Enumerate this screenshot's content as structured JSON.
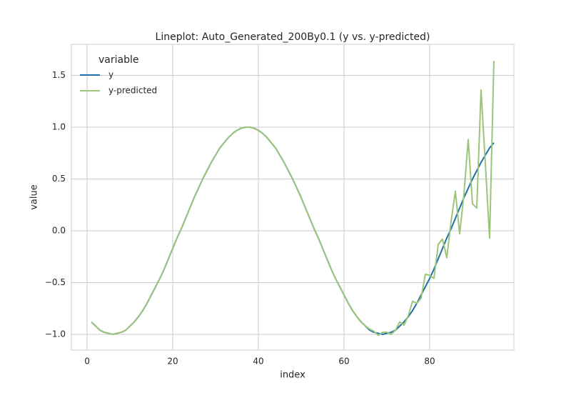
{
  "chart_data": {
    "type": "line",
    "title": "Lineplot: Auto_Generated_200By0.1 (y vs. y-predicted)",
    "x_label": "index",
    "y_label": "value",
    "legend_title": "variable",
    "legend": "upper left",
    "grid": true,
    "xlim": [
      -3.67,
      99.67
    ],
    "ylim": [
      -1.152,
      1.8
    ],
    "xticks": [
      0,
      20,
      40,
      60,
      80
    ],
    "yticks": [
      {
        "value": -1.0,
        "label": "−1.0"
      },
      {
        "value": -0.5,
        "label": "−0.5"
      },
      {
        "value": 0.0,
        "label": "0.0"
      },
      {
        "value": 0.5,
        "label": "0.5"
      },
      {
        "value": 1.0,
        "label": "1.0"
      },
      {
        "value": 1.5,
        "label": "1.5"
      }
    ],
    "x": [
      1,
      2,
      3,
      4,
      5,
      6,
      7,
      8,
      9,
      10,
      11,
      12,
      13,
      14,
      15,
      16,
      17,
      18,
      19,
      20,
      21,
      22,
      23,
      24,
      25,
      26,
      27,
      28,
      29,
      30,
      31,
      32,
      33,
      34,
      35,
      36,
      37,
      38,
      39,
      40,
      41,
      42,
      43,
      44,
      45,
      46,
      47,
      48,
      49,
      50,
      51,
      52,
      53,
      54,
      55,
      56,
      57,
      58,
      59,
      60,
      61,
      62,
      63,
      64,
      65,
      66,
      67,
      68,
      69,
      70,
      71,
      72,
      73,
      74,
      75,
      76,
      77,
      78,
      79,
      80,
      81,
      82,
      83,
      84,
      85,
      86,
      87,
      88,
      89,
      90,
      91,
      92,
      93,
      94,
      95
    ],
    "series": [
      {
        "name": "y",
        "color": "#1f6fab",
        "values": [
          -0.88,
          -0.92,
          -0.96,
          -0.98,
          -0.99,
          -1.0,
          -0.99,
          -0.98,
          -0.96,
          -0.92,
          -0.88,
          -0.83,
          -0.77,
          -0.7,
          -0.62,
          -0.54,
          -0.46,
          -0.37,
          -0.27,
          -0.17,
          -0.07,
          0.02,
          0.12,
          0.22,
          0.32,
          0.41,
          0.5,
          0.58,
          0.66,
          0.73,
          0.8,
          0.85,
          0.9,
          0.94,
          0.97,
          0.99,
          1.0,
          1.0,
          0.99,
          0.97,
          0.94,
          0.9,
          0.85,
          0.8,
          0.73,
          0.66,
          0.58,
          0.5,
          0.41,
          0.32,
          0.22,
          0.12,
          0.02,
          -0.07,
          -0.17,
          -0.27,
          -0.37,
          -0.46,
          -0.54,
          -0.62,
          -0.7,
          -0.77,
          -0.83,
          -0.88,
          -0.92,
          -0.96,
          -0.98,
          -0.99,
          -1.0,
          -0.99,
          -0.98,
          -0.96,
          -0.92,
          -0.88,
          -0.83,
          -0.77,
          -0.7,
          -0.62,
          -0.54,
          -0.46,
          -0.37,
          -0.27,
          -0.17,
          -0.07,
          0.02,
          0.12,
          0.22,
          0.32,
          0.41,
          0.5,
          0.58,
          0.66,
          0.73,
          0.8,
          0.85
        ]
      },
      {
        "name": "y-predicted",
        "color": "#9cc47a",
        "values": [
          -0.88,
          -0.92,
          -0.96,
          -0.98,
          -0.99,
          -1.0,
          -0.99,
          -0.98,
          -0.96,
          -0.92,
          -0.88,
          -0.83,
          -0.77,
          -0.7,
          -0.62,
          -0.54,
          -0.46,
          -0.37,
          -0.27,
          -0.17,
          -0.07,
          0.02,
          0.12,
          0.22,
          0.32,
          0.41,
          0.5,
          0.58,
          0.66,
          0.73,
          0.8,
          0.85,
          0.9,
          0.94,
          0.97,
          0.99,
          1.0,
          1.0,
          0.99,
          0.97,
          0.94,
          0.9,
          0.85,
          0.8,
          0.73,
          0.66,
          0.58,
          0.5,
          0.41,
          0.32,
          0.22,
          0.12,
          0.02,
          -0.07,
          -0.17,
          -0.27,
          -0.37,
          -0.46,
          -0.54,
          -0.62,
          -0.7,
          -0.77,
          -0.83,
          -0.88,
          -0.92,
          -0.95,
          -0.97,
          -1.01,
          -0.98,
          -0.98,
          -1.0,
          -0.96,
          -0.88,
          -0.91,
          -0.82,
          -0.68,
          -0.7,
          -0.65,
          -0.42,
          -0.43,
          -0.46,
          -0.13,
          -0.08,
          -0.26,
          0.09,
          0.38,
          -0.03,
          0.35,
          0.88,
          0.26,
          0.22,
          1.36,
          0.65,
          -0.07,
          1.64
        ]
      }
    ]
  }
}
